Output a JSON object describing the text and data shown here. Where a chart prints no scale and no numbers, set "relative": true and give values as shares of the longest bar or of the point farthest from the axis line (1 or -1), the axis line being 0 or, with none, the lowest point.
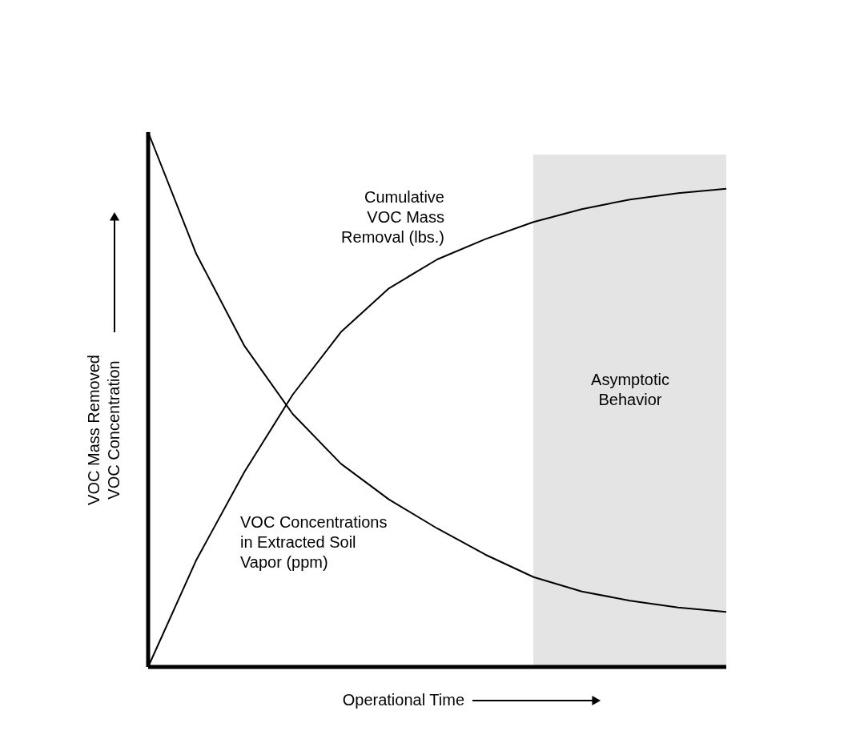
{
  "chart_data": {
    "type": "line",
    "relative": true,
    "xlabel": "Operational Time",
    "ylabel": "VOC Mass Removed\nVOC Concentration",
    "categories": [
      null,
      null,
      null,
      null,
      null,
      null,
      null,
      null,
      null,
      null,
      null,
      null,
      null
    ],
    "series": [
      {
        "name": "Cumulative\nVOC Mass\nRemoval (lbs.)",
        "color": "#000000",
        "values": [
          0,
          0.2,
          0.365,
          0.509,
          0.626,
          0.708,
          0.762,
          0.8,
          0.832,
          0.856,
          0.874,
          0.886,
          0.894
        ]
      },
      {
        "name": "VOC Concentrations\nin Extracted Soil\nVapor (ppm)",
        "color": "#000000",
        "values": [
          1.0,
          0.772,
          0.6,
          0.473,
          0.38,
          0.313,
          0.259,
          0.21,
          0.168,
          0.141,
          0.124,
          0.111,
          0.103
        ]
      }
    ],
    "annotations": [
      "Asymptotic\nBehavior"
    ]
  }
}
